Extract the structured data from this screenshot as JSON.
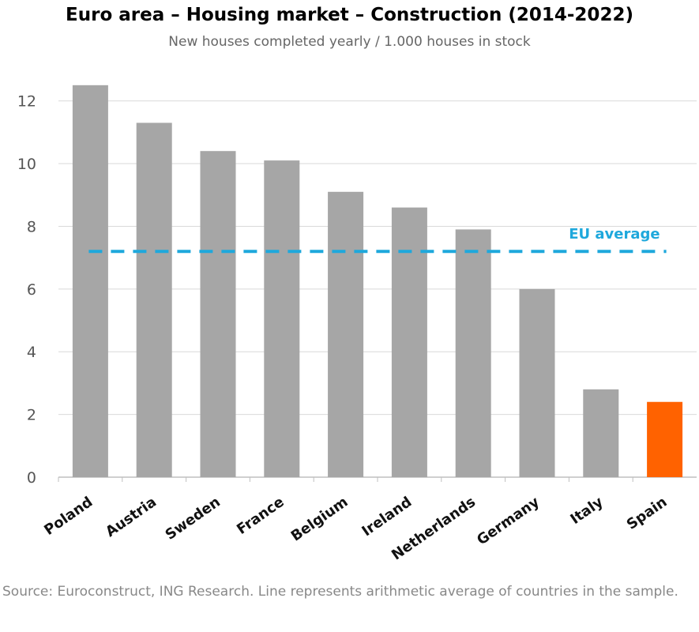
{
  "chart_data": {
    "type": "bar",
    "title": "Euro area – Housing market – Construction (2014-2022)",
    "subtitle": "New houses completed yearly / 1.000 houses in stock",
    "categories": [
      "Poland",
      "Austria",
      "Sweden",
      "France",
      "Belgium",
      "Ireland",
      "Netherlands",
      "Germany",
      "Italy",
      "Spain"
    ],
    "values": [
      12.5,
      11.3,
      10.4,
      10.1,
      9.1,
      8.6,
      7.9,
      6.0,
      2.8,
      2.4
    ],
    "highlight": "Spain",
    "yticks": [
      0,
      2,
      4,
      6,
      8,
      10,
      12
    ],
    "ylim": [
      0,
      13
    ],
    "xlabel": "",
    "ylabel": "",
    "grid": true,
    "average": {
      "label": "EU average",
      "value": 7.2
    },
    "colors": {
      "bar": "#a6a6a6",
      "highlight": "#ff6200",
      "average": "#1ea8dc",
      "grid": "#d9d9d9"
    },
    "source": "Source: Euroconstruct, ING Research. Line represents arithmetic average of countries in the sample."
  }
}
